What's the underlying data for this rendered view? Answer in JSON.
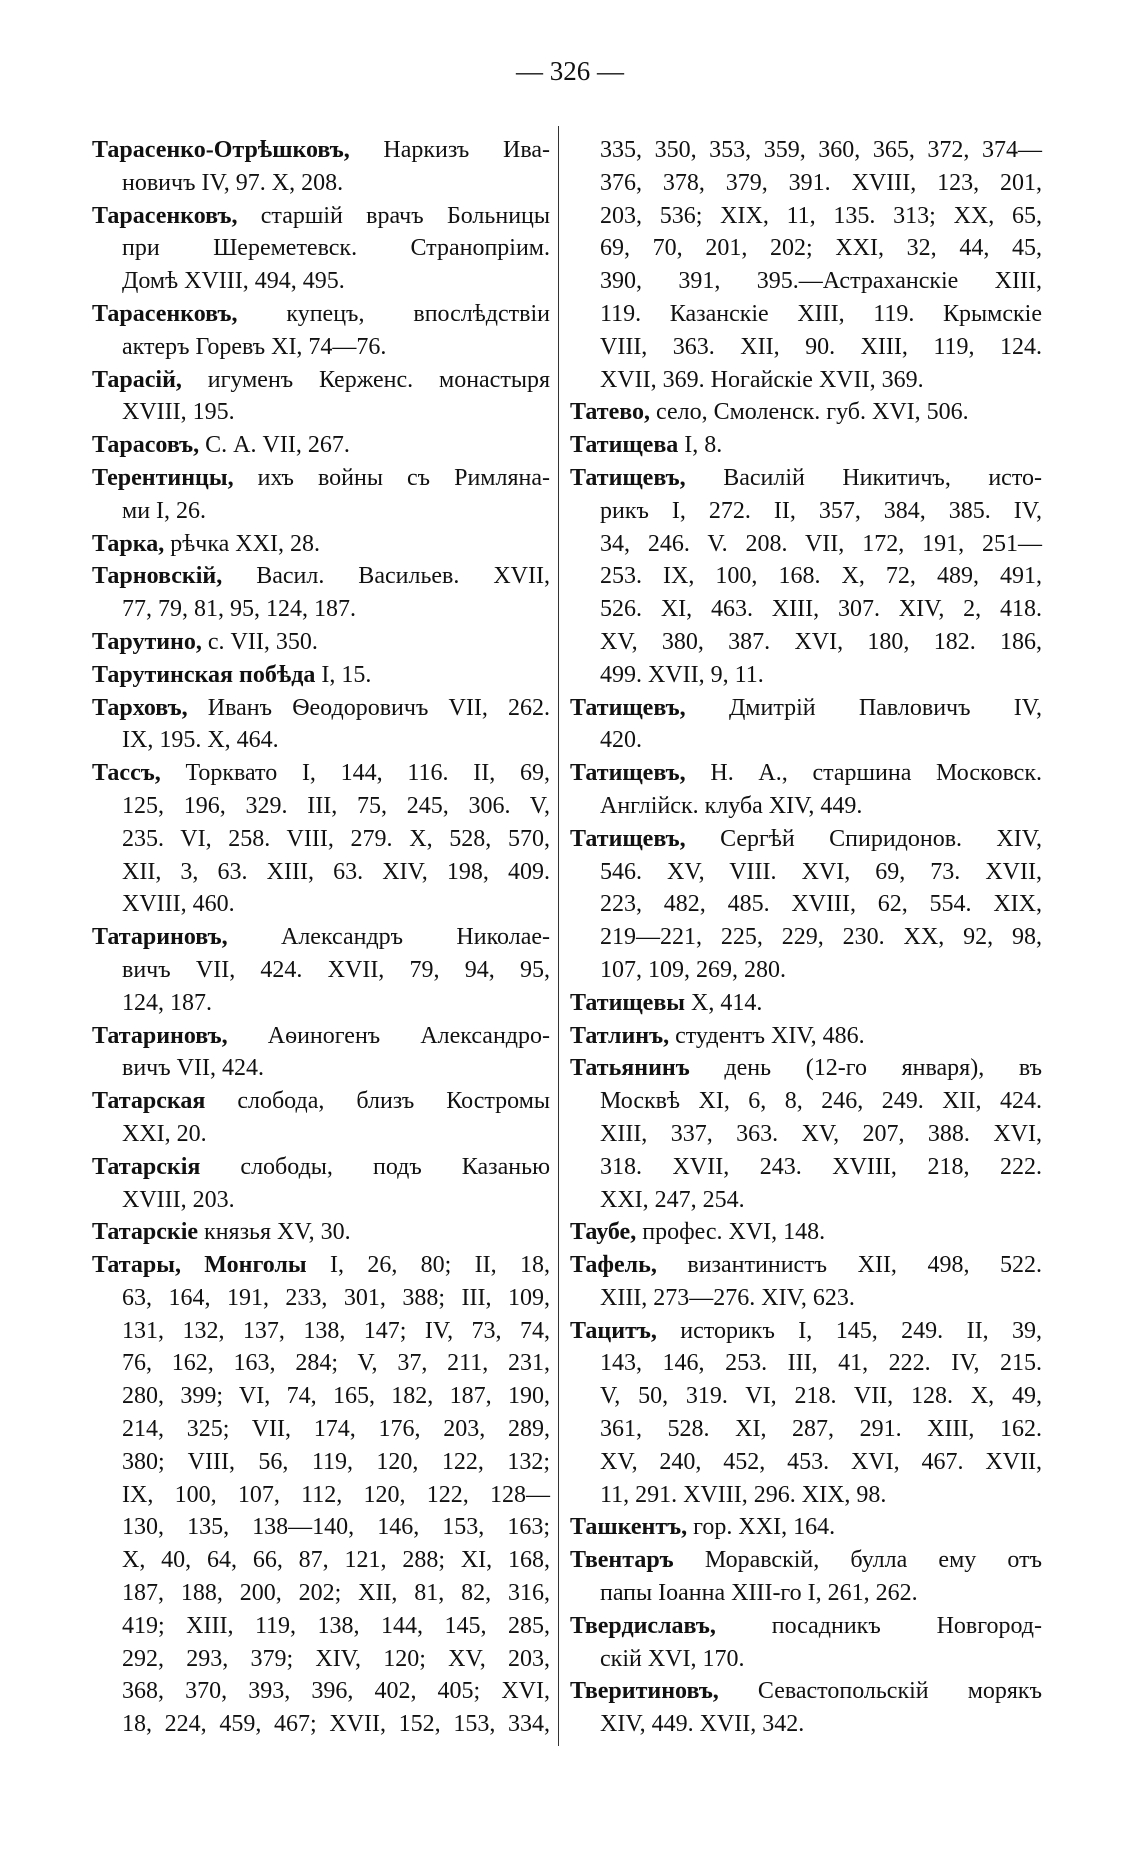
{
  "page_number": "— 326 —",
  "columns": [
    {
      "entries": [
        {
          "head": "Тарасенко-Отрѣшковъ,",
          "lines": [
            " Наркизъ Ива-",
            "новичъ IV, 97. X, 208."
          ]
        },
        {
          "head": "Тарасенковъ,",
          "lines": [
            " старшій врачъ Больницы",
            "при Шереметевск. Странопріим.",
            "Домѣ XVIII, 494, 495."
          ]
        },
        {
          "head": "Тарасенковъ,",
          "lines": [
            " купецъ, впослѣдствіи",
            "актеръ Горевъ XI, 74—76."
          ]
        },
        {
          "head": "Тарасій,",
          "lines": [
            " игуменъ Керженс. монастыря",
            "XVIII, 195."
          ]
        },
        {
          "head": "Тарасовъ,",
          "lines": [
            " С. А. VII, 267."
          ]
        },
        {
          "head": "Терентинцы,",
          "lines": [
            " ихъ войны съ Римляна-",
            "ми I, 26."
          ]
        },
        {
          "head": "Тарка,",
          "lines": [
            " рѣчка XXI, 28."
          ]
        },
        {
          "head": "Тарновскій,",
          "lines": [
            " Васил. Васильев. XVII,",
            "77, 79, 81, 95, 124, 187."
          ]
        },
        {
          "head": "Тарутино,",
          "lines": [
            " с. VII, 350."
          ]
        },
        {
          "head": "Тарутинская побѣда",
          "lines": [
            " I, 15."
          ]
        },
        {
          "head": "Тарховъ,",
          "lines": [
            " Иванъ Ѳеодоровичъ VII, 262.",
            "IX, 195. X, 464."
          ]
        },
        {
          "head": "Тассъ,",
          "lines": [
            " Торквато I, 144, 116. II, 69,",
            "125, 196, 329. III, 75, 245, 306. V,",
            "235. VI, 258. VIII, 279. X, 528, 570,",
            "XII, 3, 63. XIII, 63. XIV, 198, 409.",
            "XVIII, 460."
          ]
        },
        {
          "head": "Татариновъ,",
          "lines": [
            " Александръ Николае-",
            "вичъ VII, 424. XVII, 79, 94, 95,",
            "124, 187."
          ]
        },
        {
          "head": "Татариновъ,",
          "lines": [
            " Аѳиногенъ Александро-",
            "вичъ VII, 424."
          ]
        },
        {
          "head": "Татарская",
          "lines": [
            " слобода, близъ Костромы",
            "XXI, 20."
          ]
        },
        {
          "head": "Татарскія",
          "lines": [
            " слободы, подъ Казанью",
            "XVIII, 203."
          ]
        },
        {
          "head": "Татарскіе",
          "lines": [
            " князья XV, 30."
          ]
        },
        {
          "head": "Татары, Монголы",
          "lines": [
            " I, 26, 80; II, 18,",
            "63, 164, 191, 233, 301, 388; III, 109,",
            "131, 132, 137, 138, 147; IV, 73, 74,",
            "76, 162, 163, 284; V, 37, 211, 231,",
            "280, 399; VI, 74, 165, 182, 187, 190,",
            "214, 325; VII, 174, 176, 203, 289,",
            "380; VIII, 56, 119, 120, 122, 132;",
            "IX, 100, 107, 112, 120, 122, 128—",
            "130, 135, 138—140, 146, 153, 163;",
            "X, 40, 64, 66, 87, 121, 288; XI, 168,",
            "187, 188, 200, 202; XII, 81, 82, 316,",
            "419; XIII, 119, 138, 144, 145, 285,",
            "292, 293, 379; XIV, 120; XV, 203,",
            "368, 370, 393, 396, 402, 405; XVI,",
            "18, 224, 459, 467; XVII, 152, 153, 334,"
          ],
          "continues": true
        }
      ]
    },
    {
      "entries": [
        {
          "head": "",
          "continuation": true,
          "lines": [
            "335, 350, 353, 359, 360, 365, 372, 374—",
            "376, 378, 379, 391. XVIII, 123, 201,",
            "203, 536; XIX, 11, 135. 313; XX, 65,",
            "69, 70, 201, 202; XXI, 32, 44, 45,",
            "390, 391, 395.—Астраханскіе XIII,",
            "119. Казанскіе XIII, 119. Крымскіе",
            "VIII, 363. XII, 90. XIII, 119, 124.",
            "XVII, 369. Ногайскіе XVII, 369."
          ]
        },
        {
          "head": "Татево,",
          "lines": [
            " село, Смоленск. губ. XVI, 506."
          ]
        },
        {
          "head": "Татищева",
          "lines": [
            " I, 8."
          ]
        },
        {
          "head": "Татищевъ,",
          "lines": [
            " Василій Никитичъ, исто-",
            "рикъ I, 272. II, 357, 384, 385. IV,",
            "34, 246. V. 208. VII, 172, 191, 251—",
            "253. IX, 100, 168. X, 72, 489, 491,",
            "526. XI, 463. XIII, 307. XIV, 2, 418.",
            "XV, 380, 387. XVI, 180, 182. 186,",
            "499. XVII, 9, 11."
          ]
        },
        {
          "head": "Татищевъ,",
          "lines": [
            " Дмитрій Павловичъ IV,",
            "420."
          ]
        },
        {
          "head": "Татищевъ,",
          "lines": [
            " Н. А., старшина Московск.",
            "Англійск. клуба XIV, 449."
          ]
        },
        {
          "head": "Татищевъ,",
          "lines": [
            " Сергѣй Спиридонов. XIV,",
            "546. XV, VIII. XVI, 69, 73. XVII,",
            "223, 482, 485. XVIII, 62, 554. XIX,",
            "219—221, 225, 229, 230. XX, 92, 98,",
            "107, 109, 269, 280."
          ]
        },
        {
          "head": "Татищевы",
          "lines": [
            " X, 414."
          ]
        },
        {
          "head": "Татлинъ,",
          "lines": [
            " студентъ XIV, 486."
          ]
        },
        {
          "head": "Татьянинъ",
          "lines": [
            " день (12-го января), въ",
            "Москвѣ XI, 6, 8, 246, 249. XII, 424.",
            "XIII, 337, 363. XV, 207, 388. XVI,",
            "318. XVII, 243. XVIII, 218, 222.",
            "XXI, 247, 254."
          ]
        },
        {
          "head": "Таубе,",
          "lines": [
            " профес. XVI, 148."
          ]
        },
        {
          "head": "Тафель,",
          "lines": [
            " византинистъ XII, 498, 522.",
            "XIII, 273—276. XIV, 623."
          ]
        },
        {
          "head": "Тацитъ,",
          "lines": [
            " историкъ I, 145, 249. II, 39,",
            "143, 146, 253. III, 41, 222. IV, 215.",
            "V, 50, 319. VI, 218. VII, 128. X, 49,",
            "361, 528. XI, 287, 291. XIII, 162.",
            "XV, 240, 452, 453. XVI, 467. XVII,",
            "11, 291. XVIII, 296. XIX, 98."
          ]
        },
        {
          "head": "Ташкентъ,",
          "lines": [
            " гор. XXI, 164."
          ]
        },
        {
          "head": "Твентаръ",
          "lines": [
            " Моравскій, булла ему отъ",
            "папы Іоанна XIII-го I, 261, 262."
          ]
        },
        {
          "head": "Твердиславъ,",
          "lines": [
            " посадникъ Новгород-",
            "скій XVI, 170."
          ]
        },
        {
          "head": "Тверитиновъ,",
          "lines": [
            " Севастопольскій морякъ",
            "XIV, 449. XVII, 342."
          ]
        }
      ]
    }
  ]
}
